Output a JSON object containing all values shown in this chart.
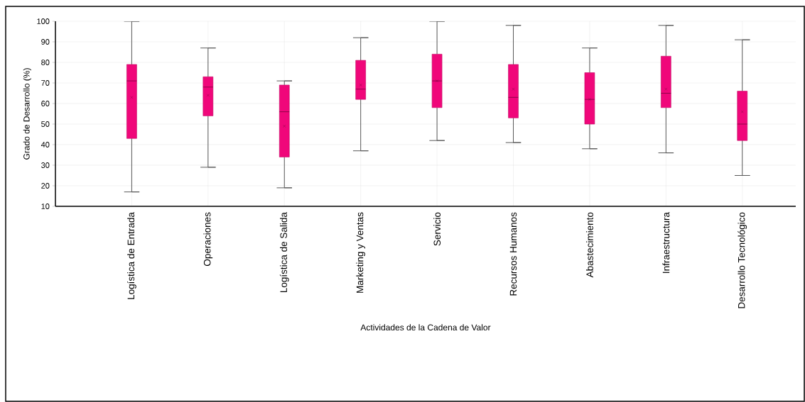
{
  "chart_data": {
    "type": "box",
    "xlabel": "Actividades de la Cadena de Valor",
    "ylabel": "Grado de Desarrollo (%)",
    "categories": [
      "Logística de Entrada",
      "Operaciones",
      "Logística de Salida",
      "Marketing y Ventas",
      "Servicio",
      "Recursos Humanos",
      "Abastecimiento",
      "Infraestructura",
      "Desarrollo Tecnológico"
    ],
    "color": "#f0077a",
    "boxes": [
      {
        "low": 17,
        "q1": 43,
        "median": 71,
        "q3": 79,
        "high": 100,
        "mean": 63
      },
      {
        "low": 29,
        "q1": 54,
        "median": 68,
        "q3": 73,
        "high": 87,
        "mean": 64
      },
      {
        "low": 19,
        "q1": 34,
        "median": 56,
        "q3": 69,
        "high": 71,
        "mean": 49
      },
      {
        "low": 37,
        "q1": 62,
        "median": 67,
        "q3": 81,
        "high": 92,
        "mean": 69
      },
      {
        "low": 42,
        "q1": 58,
        "median": 71,
        "q3": 84,
        "high": 100,
        "mean": 71
      },
      {
        "low": 41,
        "q1": 53,
        "median": 63,
        "q3": 79,
        "high": 98,
        "mean": 67
      },
      {
        "low": 38,
        "q1": 50,
        "median": 62,
        "q3": 75,
        "high": 87,
        "mean": 62
      },
      {
        "low": 36,
        "q1": 58,
        "median": 65,
        "q3": 83,
        "high": 98,
        "mean": 67
      },
      {
        "low": 25,
        "q1": 42,
        "median": 50,
        "q3": 66,
        "high": 91,
        "mean": 56
      }
    ],
    "ylim": [
      10,
      100
    ],
    "yticks": [
      10,
      20,
      30,
      40,
      50,
      60,
      70,
      80,
      90,
      100
    ],
    "grid": true
  }
}
